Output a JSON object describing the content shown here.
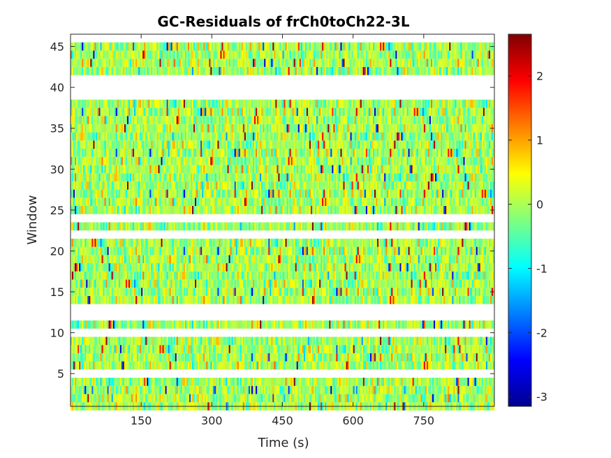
{
  "chart_data": {
    "type": "heatmap",
    "title": "GC-Residuals of frCh0toCh22-3L",
    "xlabel": "Time (s)",
    "ylabel": "Window",
    "xlim": [
      0,
      900
    ],
    "ylim": [
      1,
      46.5
    ],
    "xticks": [
      150,
      300,
      450,
      600,
      750
    ],
    "yticks": [
      5,
      10,
      15,
      20,
      25,
      30,
      35,
      40,
      45
    ],
    "colorbar": {
      "range": [
        -3.15,
        2.65
      ],
      "ticks": [
        -3,
        -2,
        -1,
        0,
        1,
        2
      ],
      "colormap": "jet"
    },
    "windows_present": [
      1,
      2,
      3,
      4,
      6,
      7,
      8,
      9,
      11,
      14,
      15,
      16,
      17,
      18,
      19,
      20,
      21,
      23,
      25,
      26,
      27,
      28,
      29,
      30,
      31,
      32,
      33,
      34,
      35,
      36,
      37,
      38,
      42,
      43,
      44,
      45
    ],
    "windows_missing": [
      5,
      10,
      12,
      13,
      22,
      24,
      39,
      40,
      41,
      46
    ],
    "value_summary": "residual values per (window, time) mostly near 0 (cyan-green-yellow), sparse extremes down to about -3 and up to about 2.6"
  }
}
